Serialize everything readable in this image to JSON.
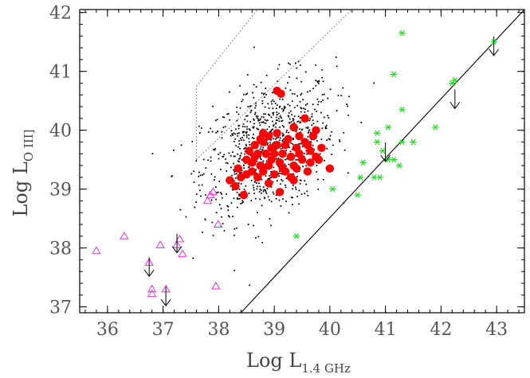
{
  "chart_data": {
    "type": "scatter",
    "title": "",
    "xlabel": {
      "main": "Log  L",
      "subscript": "1.4 GHz"
    },
    "ylabel": {
      "main": "Log  L",
      "subscript": "O III]"
    },
    "xlim": [
      35.5,
      43.5
    ],
    "ylim": [
      36.9,
      42.05
    ],
    "xticks": [
      "36",
      "37",
      "38",
      "39",
      "40",
      "41",
      "42",
      "43"
    ],
    "yticks": [
      "37",
      "38",
      "39",
      "40",
      "41",
      "42"
    ],
    "grid": false,
    "legend": "none",
    "colors": {
      "red": "#ff0000",
      "green": "#22dd22",
      "magenta": "#dd44dd",
      "black": "#000000",
      "gray": "#777777"
    },
    "series": [
      {
        "marker": "red-filled-circle",
        "color": "#ff0000",
        "points": [
          [
            39.05,
            40.67
          ],
          [
            39.12,
            40.62
          ],
          [
            39.55,
            40.2
          ],
          [
            39.35,
            40.05
          ],
          [
            39.75,
            40.0
          ],
          [
            39.6,
            39.75
          ],
          [
            39.4,
            39.7
          ],
          [
            38.8,
            39.8
          ],
          [
            38.9,
            39.9
          ],
          [
            38.7,
            39.6
          ],
          [
            38.6,
            39.3
          ],
          [
            38.5,
            39.5
          ],
          [
            38.4,
            39.2
          ],
          [
            38.3,
            39.05
          ],
          [
            38.2,
            39.15
          ],
          [
            38.45,
            38.9
          ],
          [
            38.75,
            39.4
          ],
          [
            39.0,
            39.25
          ],
          [
            39.1,
            39.45
          ],
          [
            39.2,
            39.3
          ],
          [
            39.3,
            39.55
          ],
          [
            39.4,
            39.35
          ],
          [
            39.5,
            39.5
          ],
          [
            39.65,
            39.45
          ],
          [
            39.75,
            39.55
          ],
          [
            39.85,
            39.7
          ],
          [
            39.6,
            39.3
          ],
          [
            39.7,
            39.9
          ],
          [
            38.95,
            39.7
          ],
          [
            38.85,
            39.6
          ],
          [
            38.65,
            39.75
          ],
          [
            38.55,
            39.65
          ],
          [
            38.95,
            39.5
          ],
          [
            39.15,
            39.6
          ],
          [
            39.25,
            39.85
          ],
          [
            39.05,
            39.95
          ],
          [
            38.8,
            39.95
          ],
          [
            39.45,
            39.9
          ],
          [
            39.55,
            39.8
          ],
          [
            38.7,
            39.2
          ],
          [
            38.9,
            39.1
          ],
          [
            39.35,
            39.15
          ],
          [
            39.1,
            38.95
          ],
          [
            40.0,
            39.35
          ],
          [
            39.8,
            39.5
          ],
          [
            39.45,
            39.6
          ],
          [
            38.6,
            39.45
          ],
          [
            38.35,
            39.35
          ],
          [
            38.8,
            39.3
          ],
          [
            39.2,
            39.75
          ],
          [
            38.75,
            39.85
          ],
          [
            39.0,
            39.6
          ],
          [
            38.9,
            39.4
          ],
          [
            39.3,
            39.2
          ],
          [
            38.5,
            39.25
          ],
          [
            39.15,
            39.35
          ],
          [
            39.65,
            39.65
          ],
          [
            38.65,
            39.55
          ],
          [
            39.05,
            39.75
          ],
          [
            39.35,
            39.4
          ]
        ]
      },
      {
        "marker": "green-asterisk",
        "color": "#22dd22",
        "points": [
          [
            41.3,
            41.65
          ],
          [
            42.95,
            41.5
          ],
          [
            41.15,
            40.95
          ],
          [
            42.25,
            40.85
          ],
          [
            42.2,
            40.8
          ],
          [
            41.3,
            40.35
          ],
          [
            41.9,
            40.05
          ],
          [
            41.05,
            40.05
          ],
          [
            40.85,
            39.95
          ],
          [
            40.85,
            39.8
          ],
          [
            41.3,
            39.8
          ],
          [
            41.5,
            39.8
          ],
          [
            40.95,
            39.65
          ],
          [
            41.05,
            39.5
          ],
          [
            41.15,
            39.5
          ],
          [
            41.25,
            39.4
          ],
          [
            40.6,
            39.45
          ],
          [
            40.55,
            39.2
          ],
          [
            40.8,
            39.2
          ],
          [
            40.9,
            39.2
          ],
          [
            40.05,
            39.0
          ],
          [
            40.5,
            38.9
          ],
          [
            39.4,
            38.2
          ]
        ]
      },
      {
        "marker": "magenta-open-triangle",
        "color": "#dd44dd",
        "points": [
          [
            35.8,
            37.95
          ],
          [
            36.3,
            38.2
          ],
          [
            36.75,
            37.75
          ],
          [
            36.95,
            38.05
          ],
          [
            37.3,
            38.15
          ],
          [
            37.25,
            38.05
          ],
          [
            37.35,
            37.9
          ],
          [
            36.8,
            37.3
          ],
          [
            36.8,
            37.22
          ],
          [
            37.05,
            37.3
          ],
          [
            37.85,
            38.9
          ],
          [
            37.9,
            38.95
          ],
          [
            37.8,
            38.8
          ],
          [
            37.95,
            37.35
          ],
          [
            37.99,
            38.4
          ]
        ]
      }
    ],
    "upper_limits": [
      [
        36.75,
        37.6
      ],
      [
        37.25,
        38.0
      ],
      [
        37.05,
        37.1
      ],
      [
        41.0,
        39.55
      ],
      [
        42.25,
        40.45
      ],
      [
        42.95,
        41.35
      ]
    ],
    "lines": [
      {
        "style": "solid",
        "points": [
          [
            38.4,
            36.9
          ],
          [
            43.5,
            42.05
          ]
        ]
      },
      {
        "style": "dotted",
        "points": [
          [
            37.6,
            39.5
          ],
          [
            40.4,
            42.05
          ]
        ]
      },
      {
        "style": "dotted",
        "points": [
          [
            37.6,
            40.75
          ],
          [
            38.7,
            42.05
          ]
        ]
      },
      {
        "style": "dotted",
        "points": [
          [
            37.6,
            39.5
          ],
          [
            37.6,
            40.75
          ]
        ]
      }
    ],
    "black_cloud": {
      "count": 900,
      "center": [
        38.9,
        39.7
      ],
      "spread": [
        0.6,
        0.55
      ]
    }
  }
}
